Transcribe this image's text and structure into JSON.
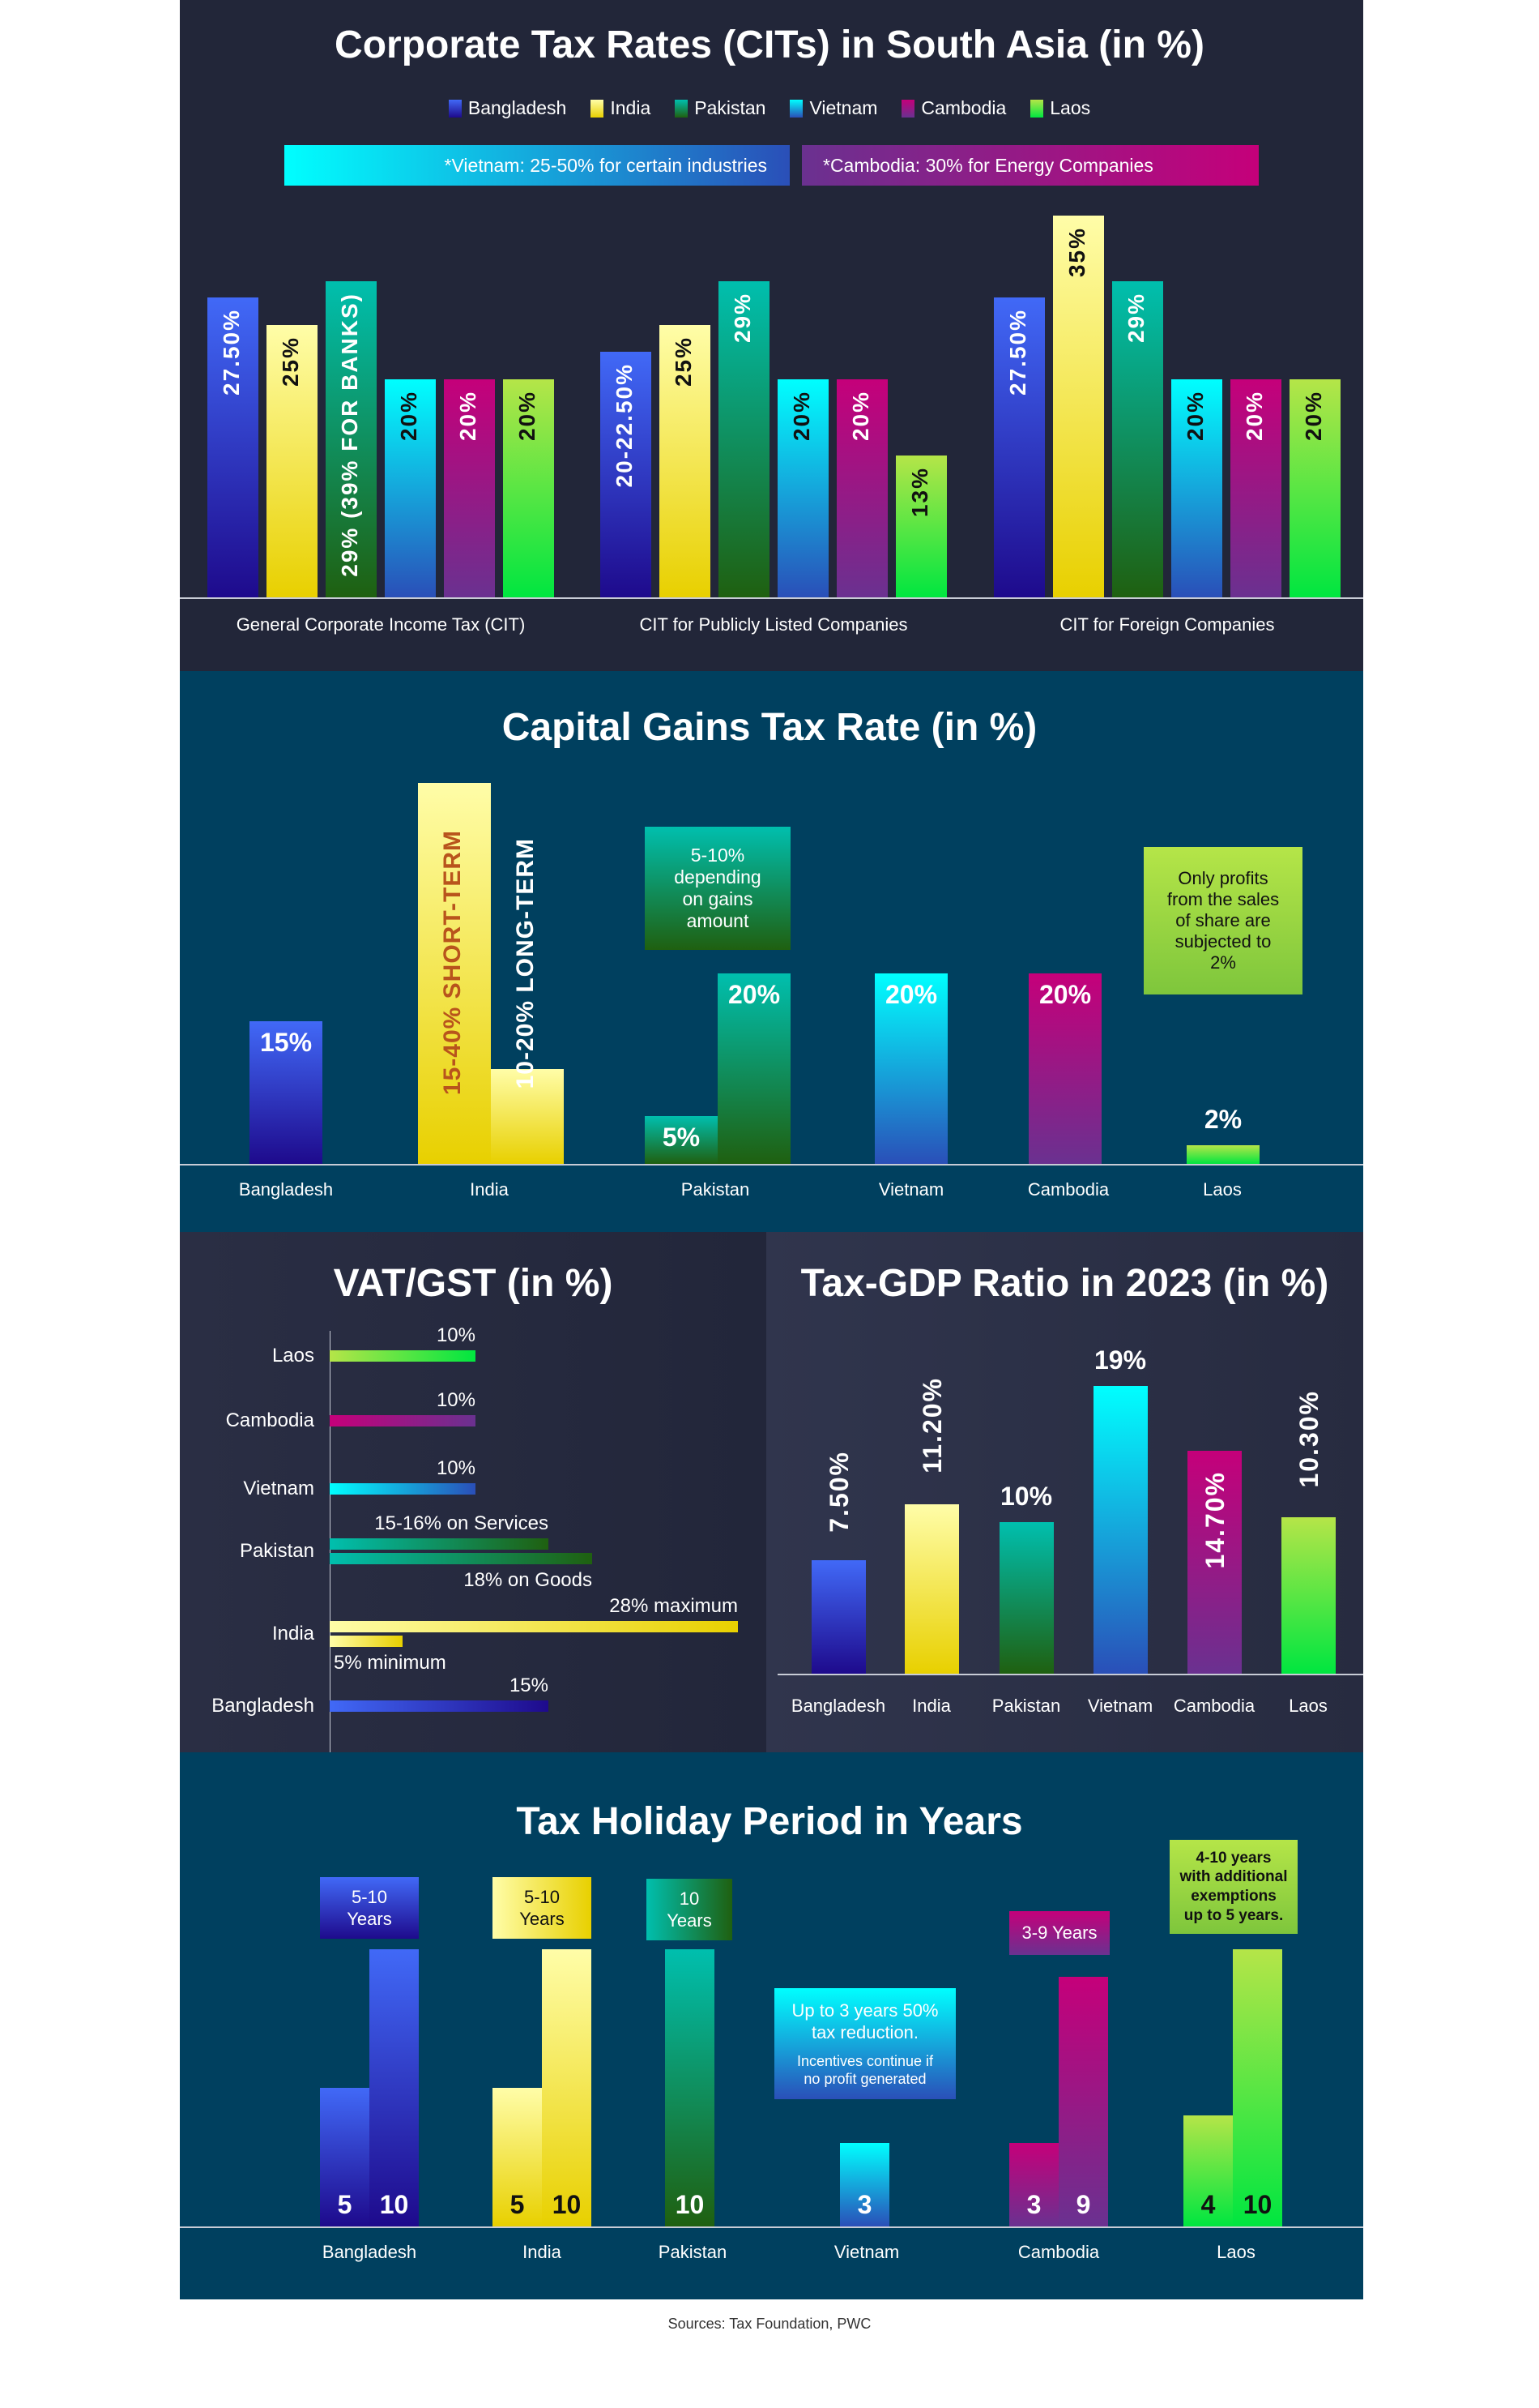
{
  "colors": {
    "Bangladesh": [
      "#4169f7",
      "#1e0a8c"
    ],
    "India": [
      "#fffda8",
      "#e8d000"
    ],
    "Pakistan": [
      "#00bfae",
      "#1f6010"
    ],
    "Vietnam": [
      "#00ffff",
      "#2a4fb8"
    ],
    "Cambodia": [
      "#c5007a",
      "#6a3190"
    ],
    "Laos": [
      "#b5e548",
      "#00e640"
    ]
  },
  "legend": [
    "Bangladesh",
    "India",
    "Pakistan",
    "Vietnam",
    "Cambodia",
    "Laos"
  ],
  "sources": "Sources: Tax Foundation, PWC",
  "chart_data": [
    {
      "type": "bar",
      "title": "Corporate Tax Rates (CITs)  in South Asia (in %)",
      "notes": [
        "*Vietnam: 25-50% for certain industries",
        "*Cambodia: 30% for Energy Companies"
      ],
      "ylim": [
        0,
        35
      ],
      "groups": [
        {
          "category": "General Corporate Income Tax (CIT)",
          "bars": [
            {
              "country": "Bangladesh",
              "value": 27.5,
              "label": "27.50%"
            },
            {
              "country": "India",
              "value": 25,
              "label": "25%"
            },
            {
              "country": "Pakistan",
              "value": 29,
              "label": "29% (39% FOR BANKS)"
            },
            {
              "country": "Vietnam",
              "value": 20,
              "label": "20%"
            },
            {
              "country": "Cambodia",
              "value": 20,
              "label": "20%"
            },
            {
              "country": "Laos",
              "value": 20,
              "label": "20%"
            }
          ]
        },
        {
          "category": "CIT for Publicly Listed Companies",
          "bars": [
            {
              "country": "Bangladesh",
              "value": 22.5,
              "label": "20-22.50%"
            },
            {
              "country": "India",
              "value": 25,
              "label": "25%"
            },
            {
              "country": "Pakistan",
              "value": 29,
              "label": "29%"
            },
            {
              "country": "Vietnam",
              "value": 20,
              "label": "20%"
            },
            {
              "country": "Cambodia",
              "value": 20,
              "label": "20%"
            },
            {
              "country": "Laos",
              "value": 13,
              "label": "13%"
            }
          ]
        },
        {
          "category": "CIT for Foreign Companies",
          "bars": [
            {
              "country": "Bangladesh",
              "value": 27.5,
              "label": "27.50%"
            },
            {
              "country": "India",
              "value": 35,
              "label": "35%"
            },
            {
              "country": "Pakistan",
              "value": 29,
              "label": "29%"
            },
            {
              "country": "Vietnam",
              "value": 20,
              "label": "20%"
            },
            {
              "country": "Cambodia",
              "value": 20,
              "label": "20%"
            },
            {
              "country": "Laos",
              "value": 20,
              "label": "20%"
            }
          ]
        }
      ]
    },
    {
      "type": "bar",
      "title": "Capital Gains Tax Rate (in %)",
      "items": [
        {
          "country": "Bangladesh",
          "bars": [
            {
              "value": 15,
              "label": "15%"
            }
          ]
        },
        {
          "country": "India",
          "bars": [
            {
              "value": 40,
              "label": "15-40% SHORT-TERM"
            },
            {
              "value": 10,
              "label": "10-20% LONG-TERM"
            }
          ]
        },
        {
          "country": "Pakistan",
          "bars": [
            {
              "value": 5,
              "label": "5%"
            },
            {
              "value": 20,
              "label": "20%"
            }
          ]
        },
        {
          "country": "Vietnam",
          "bars": [
            {
              "value": 20,
              "label": "20%"
            }
          ]
        },
        {
          "country": "Cambodia",
          "bars": [
            {
              "value": 20,
              "label": "20%"
            }
          ]
        },
        {
          "country": "Laos",
          "bars": [
            {
              "value": 2,
              "label": "2%"
            }
          ]
        }
      ],
      "notes": [
        {
          "country": "Pakistan",
          "text": "5-10%\ndepending\non gains\namount"
        },
        {
          "country": "Laos",
          "text": "Only profits\nfrom the sales\nof share are\nsubjected to\n2%"
        }
      ]
    },
    {
      "type": "bar",
      "orientation": "horizontal",
      "title": "VAT/GST (in %)",
      "rows": [
        {
          "country": "Laos",
          "bars": [
            {
              "value": 10,
              "label": "10%"
            }
          ]
        },
        {
          "country": "Cambodia",
          "bars": [
            {
              "value": 10,
              "label": "10%"
            }
          ]
        },
        {
          "country": "Vietnam",
          "bars": [
            {
              "value": 10,
              "label": "10%"
            }
          ]
        },
        {
          "country": "Pakistan",
          "bars": [
            {
              "value": 15,
              "label": "15-16% on Services"
            },
            {
              "value": 18,
              "label": "18% on Goods"
            }
          ]
        },
        {
          "country": "India",
          "bars": [
            {
              "value": 28,
              "label": "28% maximum"
            },
            {
              "value": 5,
              "label": "5% minimum"
            }
          ]
        },
        {
          "country": "Bangladesh",
          "bars": [
            {
              "value": 15,
              "label": "15%"
            }
          ]
        }
      ]
    },
    {
      "type": "bar",
      "title": "Tax-GDP Ratio in 2023 (in %)",
      "categories": [
        "Bangladesh",
        "India",
        "Pakistan",
        "Vietnam",
        "Cambodia",
        "Laos"
      ],
      "values": [
        7.5,
        11.2,
        10,
        19,
        14.7,
        10.3
      ],
      "labels": [
        "7.50%",
        "11.20%",
        "10%",
        "19%",
        "14.70%",
        "10.30%"
      ]
    },
    {
      "type": "bar",
      "title": "Tax Holiday Period in Years",
      "items": [
        {
          "country": "Bangladesh",
          "values": [
            5,
            10
          ],
          "note": "5-10\nYears"
        },
        {
          "country": "India",
          "values": [
            5,
            10
          ],
          "note": "5-10\nYears"
        },
        {
          "country": "Pakistan",
          "values": [
            10
          ],
          "note": "10\nYears"
        },
        {
          "country": "Vietnam",
          "values": [
            3
          ],
          "note": "Up to 3 years 50%\ntax reduction.",
          "subnote": "Incentives continue if\nno profit generated"
        },
        {
          "country": "Cambodia",
          "values": [
            3,
            9
          ],
          "note": "3-9 Years"
        },
        {
          "country": "Laos",
          "values": [
            4,
            10
          ],
          "note": "4-10 years\nwith additional\nexemptions\nup to 5 years."
        }
      ]
    }
  ]
}
